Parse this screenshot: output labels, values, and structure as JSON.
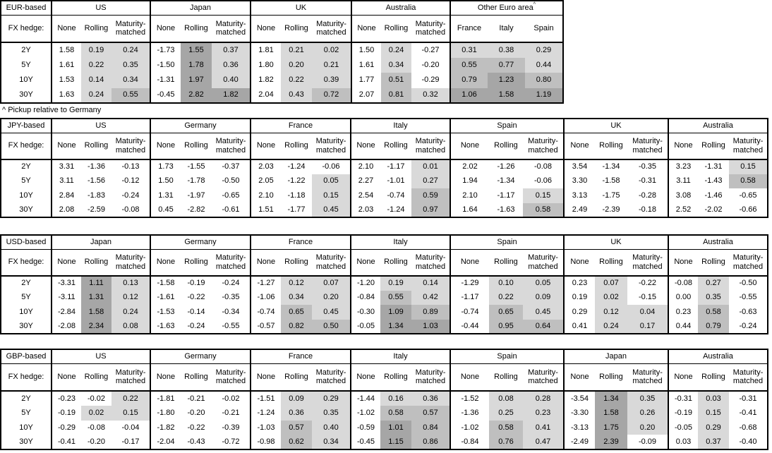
{
  "footnote": "^ Pickup relative to Germany",
  "fx_hedge_label": "FX hedge:",
  "maturity_labels": [
    "2Y",
    "5Y",
    "10Y",
    "30Y"
  ],
  "hedge_columns": [
    "None",
    "Rolling",
    "Maturity-matched"
  ],
  "shading_colors": {
    "low": "#d9d9d9",
    "mid": "#bfbfbf",
    "high": "#a6a6a6",
    "none": "#ffffff"
  },
  "tables": [
    {
      "base_label": "EUR-based",
      "groups": [
        {
          "name": "US",
          "rows": [
            [
              1.58,
              0.19,
              0.24
            ],
            [
              1.61,
              0.22,
              0.35
            ],
            [
              1.53,
              0.14,
              0.34
            ],
            [
              1.63,
              0.24,
              0.55
            ]
          ]
        },
        {
          "name": "Japan",
          "rows": [
            [
              -1.73,
              1.55,
              0.37
            ],
            [
              -1.5,
              1.78,
              0.36
            ],
            [
              -1.31,
              1.97,
              0.4
            ],
            [
              -0.45,
              2.82,
              1.82
            ]
          ]
        },
        {
          "name": "UK",
          "rows": [
            [
              1.81,
              0.21,
              0.02
            ],
            [
              1.8,
              0.2,
              0.21
            ],
            [
              1.82,
              0.22,
              0.39
            ],
            [
              2.04,
              0.43,
              0.72
            ]
          ]
        },
        {
          "name": "Australia",
          "rows": [
            [
              1.5,
              0.24,
              -0.27
            ],
            [
              1.61,
              0.34,
              -0.2
            ],
            [
              1.77,
              0.51,
              -0.29
            ],
            [
              2.07,
              0.81,
              0.32
            ]
          ]
        },
        {
          "name": "Other Euro area",
          "superscript": "^",
          "shade_first": true,
          "columns": [
            "France",
            "Italy",
            "Spain"
          ],
          "rows": [
            [
              0.31,
              0.38,
              0.29
            ],
            [
              0.55,
              0.77,
              0.44
            ],
            [
              0.79,
              1.23,
              0.8
            ],
            [
              1.06,
              1.58,
              1.19
            ]
          ]
        }
      ]
    },
    {
      "base_label": "JPY-based",
      "groups": [
        {
          "name": "US",
          "rows": [
            [
              3.31,
              -1.36,
              -0.13
            ],
            [
              3.11,
              -1.56,
              -0.12
            ],
            [
              2.84,
              -1.83,
              -0.24
            ],
            [
              2.08,
              -2.59,
              -0.08
            ]
          ]
        },
        {
          "name": "Germany",
          "rows": [
            [
              1.73,
              -1.55,
              -0.37
            ],
            [
              1.5,
              -1.78,
              -0.5
            ],
            [
              1.31,
              -1.97,
              -0.65
            ],
            [
              0.45,
              -2.82,
              -0.61
            ]
          ]
        },
        {
          "name": "France",
          "rows": [
            [
              2.03,
              -1.24,
              -0.06
            ],
            [
              2.05,
              -1.22,
              0.05
            ],
            [
              2.1,
              -1.18,
              0.15
            ],
            [
              1.51,
              -1.77,
              0.45
            ]
          ]
        },
        {
          "name": "Italy",
          "rows": [
            [
              2.1,
              -1.17,
              0.01
            ],
            [
              2.27,
              -1.01,
              0.27
            ],
            [
              2.54,
              -0.74,
              0.59
            ],
            [
              2.03,
              -1.24,
              0.97
            ]
          ]
        },
        {
          "name": "Spain",
          "rows": [
            [
              2.02,
              -1.26,
              -0.08
            ],
            [
              1.94,
              -1.34,
              -0.06
            ],
            [
              2.1,
              -1.17,
              0.15
            ],
            [
              1.64,
              -1.63,
              0.58
            ]
          ]
        },
        {
          "name": "UK",
          "rows": [
            [
              3.54,
              -1.34,
              -0.35
            ],
            [
              3.3,
              -1.58,
              -0.31
            ],
            [
              3.13,
              -1.75,
              -0.28
            ],
            [
              2.49,
              -2.39,
              -0.18
            ]
          ]
        },
        {
          "name": "Australia",
          "rows": [
            [
              3.23,
              -1.31,
              0.15
            ],
            [
              3.11,
              -1.43,
              0.58
            ],
            [
              3.08,
              -1.46,
              -0.65
            ],
            [
              2.52,
              -2.02,
              -0.66
            ]
          ]
        }
      ]
    },
    {
      "base_label": "USD-based",
      "groups": [
        {
          "name": "Japan",
          "rows": [
            [
              -3.31,
              1.11,
              0.13
            ],
            [
              -3.11,
              1.31,
              0.12
            ],
            [
              -2.84,
              1.58,
              0.24
            ],
            [
              -2.08,
              2.34,
              0.08
            ]
          ]
        },
        {
          "name": "Germany",
          "rows": [
            [
              -1.58,
              -0.19,
              -0.24
            ],
            [
              -1.61,
              -0.22,
              -0.35
            ],
            [
              -1.53,
              -0.14,
              -0.34
            ],
            [
              -1.63,
              -0.24,
              -0.55
            ]
          ]
        },
        {
          "name": "France",
          "rows": [
            [
              -1.27,
              0.12,
              0.07
            ],
            [
              -1.06,
              0.34,
              0.2
            ],
            [
              -0.74,
              0.65,
              0.45
            ],
            [
              -0.57,
              0.82,
              0.5
            ]
          ]
        },
        {
          "name": "Italy",
          "rows": [
            [
              -1.2,
              0.19,
              0.14
            ],
            [
              -0.84,
              0.55,
              0.42
            ],
            [
              -0.3,
              1.09,
              0.89
            ],
            [
              -0.05,
              1.34,
              1.03
            ]
          ]
        },
        {
          "name": "Spain",
          "rows": [
            [
              -1.29,
              0.1,
              0.05
            ],
            [
              -1.17,
              0.22,
              0.09
            ],
            [
              -0.74,
              0.65,
              0.45
            ],
            [
              -0.44,
              0.95,
              0.64
            ]
          ]
        },
        {
          "name": "UK",
          "rows": [
            [
              0.23,
              0.07,
              -0.22
            ],
            [
              0.19,
              0.02,
              -0.15
            ],
            [
              0.29,
              0.12,
              0.04
            ],
            [
              0.41,
              0.24,
              0.17
            ]
          ]
        },
        {
          "name": "Australia",
          "rows": [
            [
              -0.08,
              0.27,
              -0.5
            ],
            [
              0,
              0.35,
              -0.55
            ],
            [
              0.23,
              0.58,
              -0.63
            ],
            [
              0.44,
              0.79,
              -0.24
            ]
          ]
        }
      ]
    },
    {
      "base_label": "GBP-based",
      "groups": [
        {
          "name": "US",
          "rows": [
            [
              -0.23,
              -0.02,
              0.22
            ],
            [
              -0.19,
              0.02,
              0.15
            ],
            [
              -0.29,
              -0.08,
              -0.04
            ],
            [
              -0.41,
              -0.2,
              -0.17
            ]
          ]
        },
        {
          "name": "Germany",
          "rows": [
            [
              -1.81,
              -0.21,
              -0.02
            ],
            [
              -1.8,
              -0.2,
              -0.21
            ],
            [
              -1.82,
              -0.22,
              -0.39
            ],
            [
              -2.04,
              -0.43,
              -0.72
            ]
          ]
        },
        {
          "name": "France",
          "rows": [
            [
              -1.51,
              0.09,
              0.29
            ],
            [
              -1.24,
              0.36,
              0.35
            ],
            [
              -1.03,
              0.57,
              0.4
            ],
            [
              -0.98,
              0.62,
              0.34
            ]
          ]
        },
        {
          "name": "Italy",
          "rows": [
            [
              -1.44,
              0.16,
              0.36
            ],
            [
              -1.02,
              0.58,
              0.57
            ],
            [
              -0.59,
              1.01,
              0.84
            ],
            [
              -0.45,
              1.15,
              0.86
            ]
          ]
        },
        {
          "name": "Spain",
          "rows": [
            [
              -1.52,
              0.08,
              0.28
            ],
            [
              -1.36,
              0.25,
              0.23
            ],
            [
              -1.02,
              0.58,
              0.41
            ],
            [
              -0.84,
              0.76,
              0.47
            ]
          ]
        },
        {
          "name": "Japan",
          "rows": [
            [
              -3.54,
              1.34,
              0.35
            ],
            [
              -3.3,
              1.58,
              0.26
            ],
            [
              -3.13,
              1.75,
              0.2
            ],
            [
              -2.49,
              2.39,
              -0.09
            ]
          ]
        },
        {
          "name": "Australia",
          "rows": [
            [
              -0.31,
              0.03,
              -0.31
            ],
            [
              -0.19,
              0.15,
              -0.41
            ],
            [
              -0.05,
              0.29,
              -0.68
            ],
            [
              0.03,
              0.37,
              -0.4
            ]
          ]
        }
      ]
    }
  ]
}
